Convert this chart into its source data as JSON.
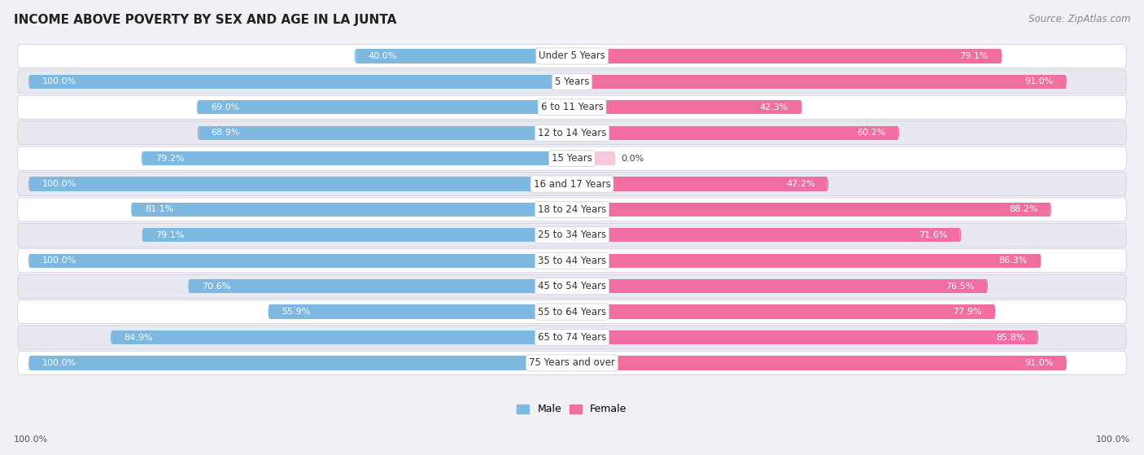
{
  "title": "INCOME ABOVE POVERTY BY SEX AND AGE IN LA JUNTA",
  "source": "Source: ZipAtlas.com",
  "categories": [
    "Under 5 Years",
    "5 Years",
    "6 to 11 Years",
    "12 to 14 Years",
    "15 Years",
    "16 and 17 Years",
    "18 to 24 Years",
    "25 to 34 Years",
    "35 to 44 Years",
    "45 to 54 Years",
    "55 to 64 Years",
    "65 to 74 Years",
    "75 Years and over"
  ],
  "male_values": [
    40.0,
    100.0,
    69.0,
    68.9,
    79.2,
    100.0,
    81.1,
    79.1,
    100.0,
    70.6,
    55.9,
    84.9,
    100.0
  ],
  "female_values": [
    79.1,
    91.0,
    42.3,
    60.2,
    0.0,
    47.2,
    88.2,
    71.6,
    86.3,
    76.5,
    77.9,
    85.8,
    91.0
  ],
  "male_color": "#7db8e0",
  "female_color": "#f06fa0",
  "female_light_color": "#f9c8dc",
  "male_label": "Male",
  "female_label": "Female",
  "bg_color": "#f0f0f5",
  "row_color_light": "#ffffff",
  "row_color_dark": "#e8e8f0",
  "title_fontsize": 11,
  "label_fontsize": 8.5,
  "value_fontsize": 8,
  "source_fontsize": 8.5,
  "max_val": 100.0
}
